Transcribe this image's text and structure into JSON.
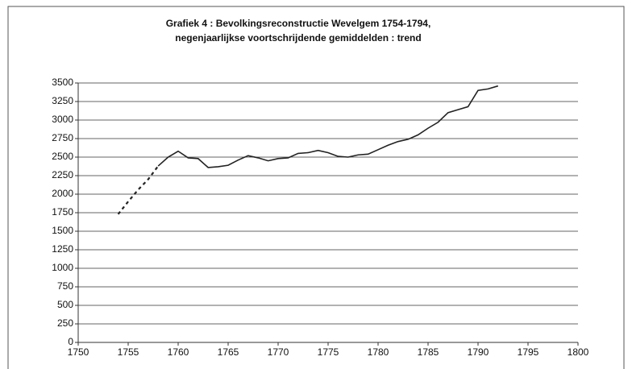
{
  "chart_data": {
    "type": "line",
    "title": [
      "Grafiek 4 : Bevolkingsreconstructie Wevelgem 1754-1794,",
      "negenjaarlijkse voortschrijdende gemiddelden : trend"
    ],
    "series": [
      {
        "color": "#222222",
        "dashed": true,
        "x": [
          1754,
          1755,
          1756,
          1757,
          1758
        ],
        "values": [
          1730,
          1900,
          2060,
          2200,
          2380
        ]
      },
      {
        "color": "#222222",
        "dashed": false,
        "x": [
          1758,
          1759,
          1760,
          1761,
          1762,
          1763,
          1764,
          1765,
          1766,
          1767,
          1768,
          1769,
          1770,
          1771,
          1772,
          1773,
          1774,
          1775,
          1776,
          1777,
          1778,
          1779,
          1780,
          1781,
          1782,
          1783,
          1784,
          1785,
          1786,
          1787,
          1788,
          1789,
          1790,
          1791,
          1792
        ],
        "values": [
          2380,
          2500,
          2580,
          2490,
          2480,
          2360,
          2370,
          2390,
          2460,
          2520,
          2490,
          2450,
          2480,
          2490,
          2550,
          2560,
          2590,
          2560,
          2510,
          2500,
          2530,
          2540,
          2600,
          2660,
          2710,
          2740,
          2800,
          2890,
          2970,
          3100,
          3140,
          3180,
          3400,
          3420,
          3460
        ]
      }
    ],
    "xlim": [
      1750,
      1800
    ],
    "xticks": [
      1750,
      1755,
      1760,
      1765,
      1770,
      1775,
      1780,
      1785,
      1790,
      1795,
      1800
    ],
    "ylim": [
      0,
      3500
    ],
    "yticks": [
      0,
      250,
      500,
      750,
      1000,
      1250,
      1500,
      1750,
      2000,
      2250,
      2500,
      2750,
      3000,
      3250,
      3500
    ],
    "grid": true
  }
}
